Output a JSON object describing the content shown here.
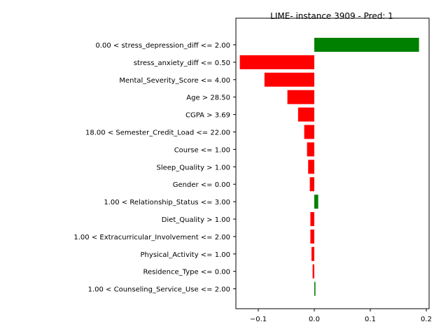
{
  "chart_data": {
    "type": "bar",
    "orientation": "horizontal",
    "title": "LIME- instance 3909 - Pred: 1",
    "xlabel": "",
    "ylabel": "",
    "xlim": [
      -0.14,
      0.205
    ],
    "xticks": [
      -0.1,
      0.0,
      0.1,
      0.2
    ],
    "xtick_labels": [
      "−0.1",
      "0.0",
      "0.1",
      "0.2"
    ],
    "grid": false,
    "colors": {
      "positive": "#008000",
      "negative": "#ff0000"
    },
    "categories": [
      "0.00 < stress_depression_diff <= 2.00",
      "stress_anxiety_diff <= 0.50",
      "Mental_Severity_Score <= 4.00",
      "Age > 28.50",
      "CGPA > 3.69",
      "18.00 < Semester_Credit_Load <= 22.00",
      "Course <= 1.00",
      "Sleep_Quality > 1.00",
      "Gender <= 0.00",
      "1.00 < Relationship_Status <= 3.00",
      "Diet_Quality > 1.00",
      "1.00 < Extracurricular_Involvement <= 2.00",
      "Physical_Activity <= 1.00",
      "Residence_Type <= 0.00",
      "1.00 < Counseling_Service_Use <= 2.00"
    ],
    "values": [
      0.187,
      -0.133,
      -0.089,
      -0.048,
      -0.029,
      -0.018,
      -0.013,
      -0.011,
      -0.008,
      0.007,
      -0.007,
      -0.007,
      -0.005,
      -0.003,
      0.002
    ]
  }
}
